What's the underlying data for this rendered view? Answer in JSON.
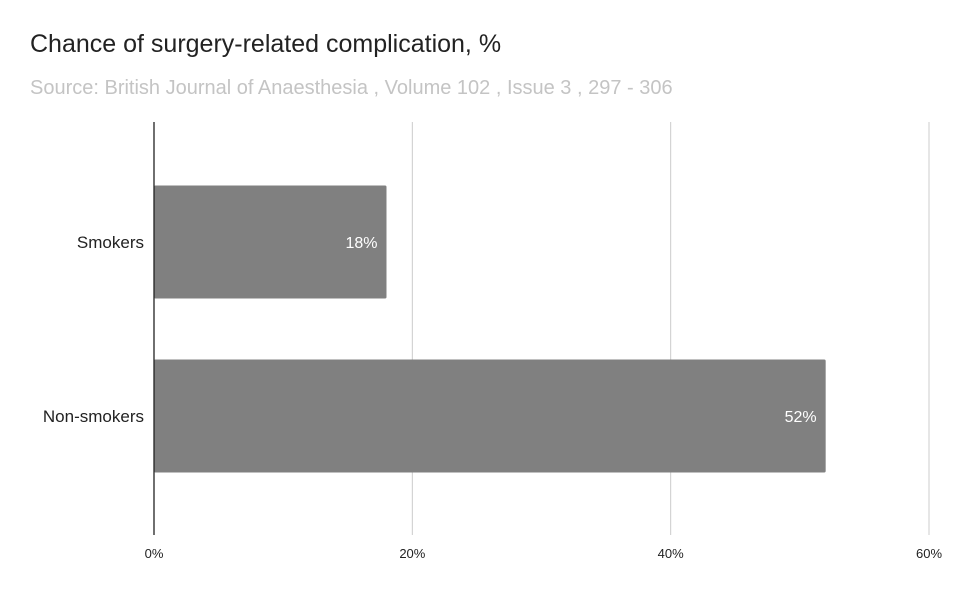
{
  "chart_data": {
    "type": "bar",
    "orientation": "horizontal",
    "title": "Chance of surgery-related complication, %",
    "subtitle": "Source: British Journal of Anaesthesia , Volume 102 , Issue 3 , 297 - 306",
    "categories": [
      "Smokers",
      "Non-smokers"
    ],
    "values": [
      18,
      52
    ],
    "data_labels": [
      "18%",
      "52%"
    ],
    "xlim": [
      0,
      60
    ],
    "x_ticks": [
      0,
      20,
      40,
      60
    ],
    "x_tick_labels": [
      "0%",
      "20%",
      "40%",
      "60%"
    ],
    "bar_color": "#808080",
    "grid": true,
    "legend": "none"
  }
}
